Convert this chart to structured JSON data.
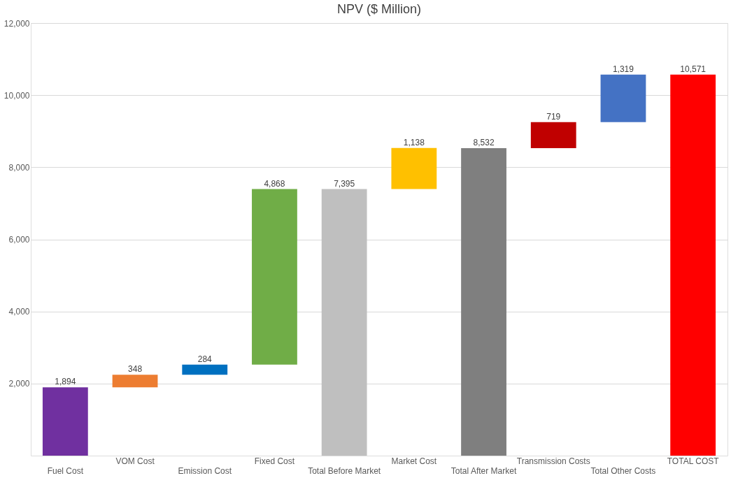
{
  "chart_data": {
    "type": "bar",
    "title": "NPV ($ Million)",
    "categories": [
      "Fuel Cost",
      "VOM Cost",
      "Emission Cost",
      "Fixed Cost",
      "Total Before Market",
      "Market Cost",
      "Total After Market",
      "Transmission Costs",
      "Total Other Costs",
      "TOTAL COST"
    ],
    "values": [
      1894,
      348,
      284,
      4868,
      7395,
      1138,
      8532,
      719,
      1319,
      10571
    ],
    "base": [
      0,
      1894,
      2242,
      2526,
      0,
      7395,
      0,
      8532,
      9251,
      0
    ],
    "colors": [
      "#7030a0",
      "#ed7d31",
      "#0070c0",
      "#70ad47",
      "#bfbfbf",
      "#ffc000",
      "#7f7f7f",
      "#c00000",
      "#4472c4",
      "#ff0000"
    ],
    "value_labels": [
      "1,894",
      "348",
      "284",
      "4,868",
      "7,395",
      "1,138",
      "8,532",
      "719",
      "1,319",
      "10,571"
    ],
    "ylim": [
      0,
      12000
    ],
    "yticks": [
      {
        "value": 2000,
        "label": "2,000"
      },
      {
        "value": 4000,
        "label": "4,000"
      },
      {
        "value": 6000,
        "label": "6,000"
      },
      {
        "value": 8000,
        "label": "8,000"
      },
      {
        "value": 10000,
        "label": "10,000"
      },
      {
        "value": 12000,
        "label": "12,000"
      }
    ],
    "grid": "y",
    "legend": false
  }
}
